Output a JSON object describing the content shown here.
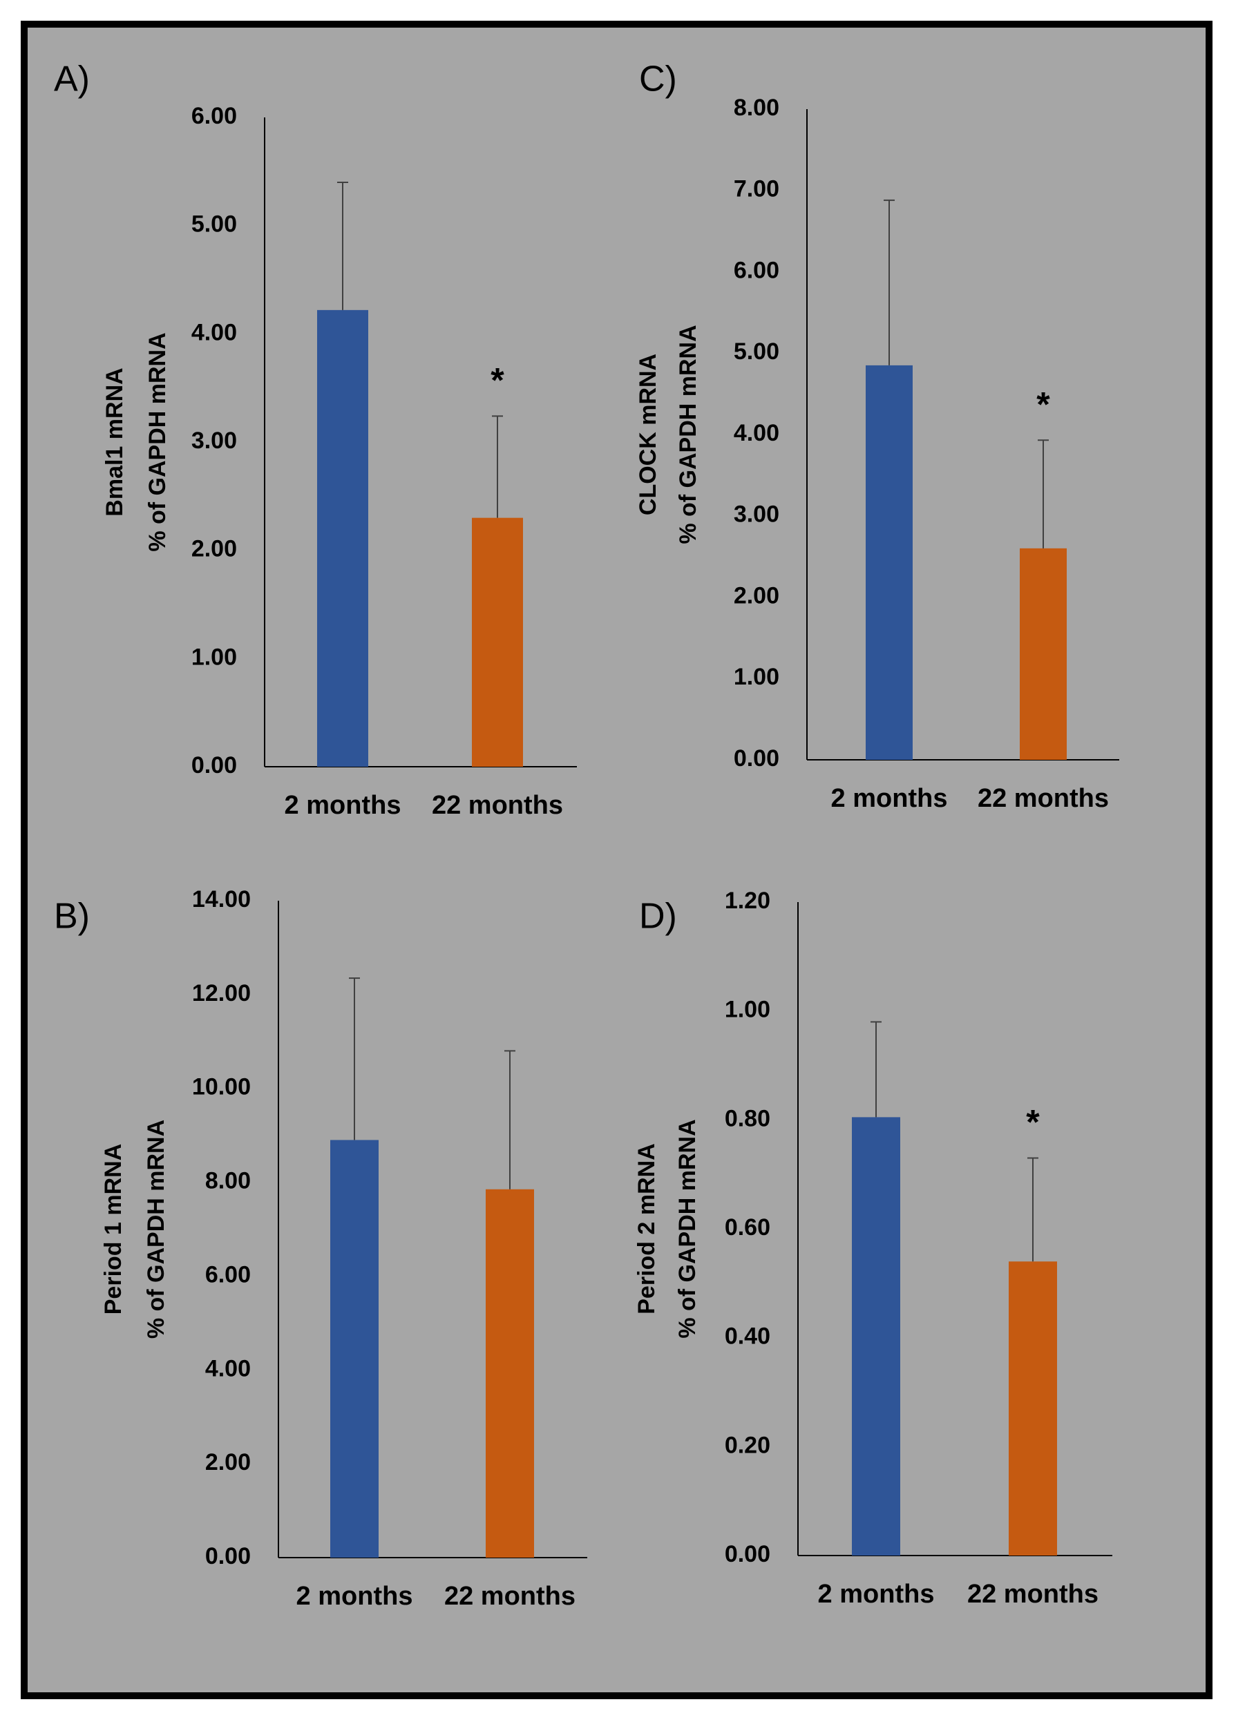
{
  "figure": {
    "background_color": "#a6a6a6",
    "border_color": "#000000"
  },
  "chart_data": [
    {
      "panel": "A)",
      "type": "bar",
      "categories": [
        "2 months",
        "22 months"
      ],
      "values": [
        4.22,
        2.3
      ],
      "errors": [
        1.18,
        0.94
      ],
      "significance": [
        "",
        "*"
      ],
      "colors": [
        "#2f5597",
        "#c55a11"
      ],
      "ylabel_lines": [
        "Bmal1  mRNA",
        "% of GAPDH mRNA"
      ],
      "ylim": [
        0,
        6
      ],
      "yticks": [
        "0.00",
        "1.00",
        "2.00",
        "3.00",
        "4.00",
        "5.00",
        "6.00"
      ]
    },
    {
      "panel": "C)",
      "type": "bar",
      "categories": [
        "2 months",
        "22 months"
      ],
      "values": [
        4.85,
        2.6
      ],
      "errors": [
        2.03,
        1.33
      ],
      "significance": [
        "",
        "*"
      ],
      "colors": [
        "#2f5597",
        "#c55a11"
      ],
      "ylabel_lines": [
        "CLOCK  mRNA",
        "% of GAPDH mRNA"
      ],
      "ylim": [
        0,
        8
      ],
      "yticks": [
        "0.00",
        "1.00",
        "2.00",
        "3.00",
        "4.00",
        "5.00",
        "6.00",
        "7.00",
        "8.00"
      ]
    },
    {
      "panel": "B)",
      "type": "bar",
      "categories": [
        "2 months",
        "22 months"
      ],
      "values": [
        8.9,
        7.85
      ],
      "errors": [
        3.45,
        2.95
      ],
      "significance": [
        "",
        ""
      ],
      "colors": [
        "#2f5597",
        "#c55a11"
      ],
      "ylabel_lines": [
        "Period 1  mRNA",
        "% of GAPDH mRNA"
      ],
      "ylim": [
        0,
        14
      ],
      "yticks": [
        "0.00",
        "2.00",
        "4.00",
        "6.00",
        "8.00",
        "10.00",
        "12.00",
        "14.00"
      ]
    },
    {
      "panel": "D)",
      "type": "bar",
      "categories": [
        "2 months",
        "22 months"
      ],
      "values": [
        0.805,
        0.54
      ],
      "errors": [
        0.175,
        0.19
      ],
      "significance": [
        "",
        "*"
      ],
      "colors": [
        "#2f5597",
        "#c55a11"
      ],
      "ylabel_lines": [
        "Period 2  mRNA",
        "% of GAPDH mRNA"
      ],
      "ylim": [
        0,
        1.2
      ],
      "yticks": [
        "0.00",
        "0.20",
        "0.40",
        "0.60",
        "0.80",
        "1.00",
        "1.20"
      ]
    }
  ]
}
